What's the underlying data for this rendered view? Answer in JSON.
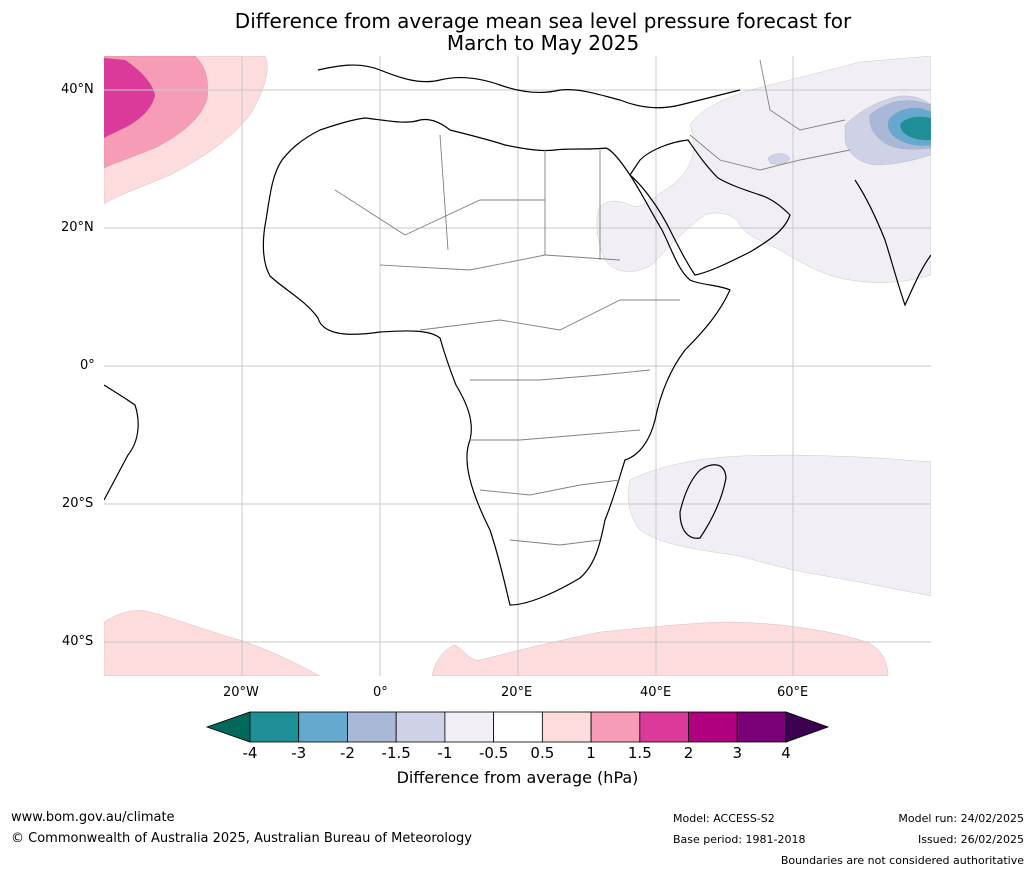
{
  "title": {
    "line1": "Difference from average mean sea level pressure forecast for",
    "line2": "March to May 2025"
  },
  "map": {
    "lat_labels": [
      "40°N",
      "20°N",
      "0°",
      "20°S",
      "40°S"
    ],
    "lon_labels": [
      "20°W",
      "0°",
      "20°E",
      "40°E",
      "60°E"
    ],
    "colors": {
      "land_outline": "#000000",
      "borders": "#808080",
      "gridlines": "#c8c8c8",
      "pos_05_1": "#fcdcdc",
      "pos_1_15": "#f79cb6",
      "pos_15_2": "#dc3a9a",
      "neg_05_1": "#f2eef5",
      "neg_1_15": "#cfd2e6",
      "neg_15_2": "#a9b8d7",
      "neg_2_3": "#66a9ce",
      "neg_3_4": "#1e8f97"
    }
  },
  "colorbar": {
    "ticks": [
      "-4",
      "-3",
      "-2",
      "-1.5",
      "-1",
      "-0.5",
      "0.5",
      "1",
      "1.5",
      "2",
      "3",
      "4"
    ],
    "segments": [
      "#1e8f97",
      "#66a9ce",
      "#a9b8d7",
      "#cfd2e6",
      "#f2eef5",
      "#ffffff",
      "#fcdcdc",
      "#f79cb6",
      "#dc3a9a",
      "#b0007f",
      "#7a0077"
    ],
    "low_extend_color": "#00695c",
    "high_extend_color": "#3e0050",
    "label": "Difference from average (hPa)"
  },
  "footer": {
    "website": "www.bom.gov.au/climate",
    "copyright": "© Commonwealth of Australia 2025, Australian Bureau of Meteorology",
    "model": "Model: ACCESS-S2",
    "base_period": "Base period: 1981-2018",
    "model_run": "Model run: 24/02/2025",
    "issued": "Issued: 26/02/2025",
    "disclaimer": "Boundaries are not considered authoritative"
  }
}
